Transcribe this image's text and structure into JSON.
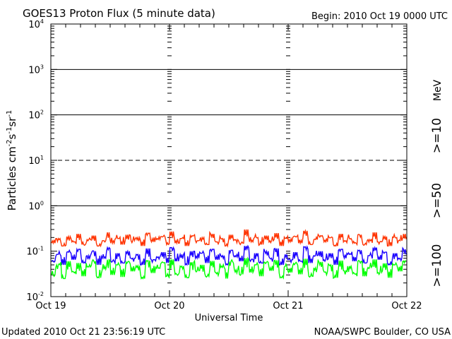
{
  "header": {
    "title": "GOES13 Proton Flux (5 minute data)",
    "begin": "Begin: 2010 Oct 19 0000 UTC"
  },
  "footer": {
    "updated": "Updated 2010 Oct 21 23:56:19 UTC",
    "source": "NOAA/SWPC Boulder, CO USA"
  },
  "colors": {
    "ge10": "#ff3300",
    "ge50": "#1a00ff",
    "ge100": "#00ff00",
    "axis": "#000000"
  },
  "chart_data": {
    "type": "line",
    "title": "GOES13 Proton Flux (5 minute data)",
    "xlabel": "Universal Time",
    "ylabel_base": "Particles cm",
    "ylabel_sup1": "-2",
    "ylabel_mid1": "s",
    "ylabel_sup2": "-1",
    "ylabel_mid2": "sr",
    "ylabel_sup3": "-1",
    "y_scale": "log",
    "ylim": [
      0.01,
      10000
    ],
    "y_ticks": [
      {
        "base": "10",
        "exp": "-2",
        "value": 0.01
      },
      {
        "base": "10",
        "exp": "-1",
        "value": 0.1
      },
      {
        "base": "10",
        "exp": "0",
        "value": 1
      },
      {
        "base": "10",
        "exp": "1",
        "value": 10
      },
      {
        "base": "10",
        "exp": "2",
        "value": 100
      },
      {
        "base": "10",
        "exp": "3",
        "value": 1000
      },
      {
        "base": "10",
        "exp": "4",
        "value": 10000
      }
    ],
    "x_ticks": [
      "Oct 19",
      "Oct 20",
      "Oct 21",
      "Oct 22"
    ],
    "xlim": [
      "2010-10-19 00:00",
      "2010-10-22 00:00"
    ],
    "threshold_lines": [
      {
        "value": 1,
        "style": "solid"
      },
      {
        "value": 10,
        "style": "dashed"
      },
      {
        "value": 100,
        "style": "solid"
      },
      {
        "value": 1000,
        "style": "solid"
      }
    ],
    "unit_label": "MeV",
    "legend": [
      {
        "label": ">=10",
        "color": "#ff3300"
      },
      {
        "label": ">=50",
        "color": "#1a00ff"
      },
      {
        "label": ">=100",
        "color": "#00ff00"
      }
    ],
    "series": [
      {
        "name": ">=10",
        "color": "#ff3300",
        "values": [
          0.15,
          0.19,
          0.13,
          0.21,
          0.16,
          0.24,
          0.14,
          0.18,
          0.22,
          0.13,
          0.17,
          0.26,
          0.15,
          0.19,
          0.14,
          0.23,
          0.17,
          0.2,
          0.13,
          0.25,
          0.16,
          0.18,
          0.21,
          0.14,
          0.27,
          0.15,
          0.19,
          0.13,
          0.22,
          0.17,
          0.2,
          0.14,
          0.24,
          0.16,
          0.19,
          0.13,
          0.23,
          0.18,
          0.15,
          0.3,
          0.16,
          0.2,
          0.14,
          0.22,
          0.17,
          0.25,
          0.13,
          0.19,
          0.16,
          0.21,
          0.15,
          0.28,
          0.14,
          0.18,
          0.22,
          0.16,
          0.2,
          0.13,
          0.24,
          0.17,
          0.19,
          0.15,
          0.23,
          0.14,
          0.18,
          0.26,
          0.16,
          0.21,
          0.13,
          0.2,
          0.17,
          0.24
        ]
      },
      {
        "name": ">=50",
        "color": "#1a00ff",
        "values": [
          0.06,
          0.085,
          0.05,
          0.095,
          0.065,
          0.11,
          0.055,
          0.08,
          0.1,
          0.05,
          0.07,
          0.12,
          0.06,
          0.09,
          0.055,
          0.1,
          0.07,
          0.085,
          0.05,
          0.115,
          0.065,
          0.075,
          0.095,
          0.055,
          0.12,
          0.06,
          0.085,
          0.05,
          0.1,
          0.07,
          0.09,
          0.055,
          0.11,
          0.065,
          0.08,
          0.05,
          0.105,
          0.075,
          0.06,
          0.13,
          0.065,
          0.09,
          0.055,
          0.1,
          0.07,
          0.115,
          0.05,
          0.085,
          0.065,
          0.095,
          0.06,
          0.125,
          0.055,
          0.08,
          0.1,
          0.065,
          0.09,
          0.05,
          0.11,
          0.07,
          0.085,
          0.06,
          0.105,
          0.055,
          0.08,
          0.12,
          0.065,
          0.095,
          0.05,
          0.09,
          0.07,
          0.11
        ]
      },
      {
        "name": ">=100",
        "color": "#00ff00",
        "values": [
          0.03,
          0.05,
          0.025,
          0.06,
          0.035,
          0.055,
          0.028,
          0.045,
          0.06,
          0.026,
          0.04,
          0.065,
          0.03,
          0.05,
          0.027,
          0.058,
          0.036,
          0.048,
          0.025,
          0.062,
          0.033,
          0.042,
          0.056,
          0.028,
          0.066,
          0.031,
          0.047,
          0.026,
          0.057,
          0.037,
          0.05,
          0.028,
          0.061,
          0.034,
          0.044,
          0.025,
          0.059,
          0.039,
          0.031,
          0.07,
          0.034,
          0.05,
          0.028,
          0.057,
          0.037,
          0.063,
          0.026,
          0.046,
          0.034,
          0.054,
          0.031,
          0.068,
          0.028,
          0.043,
          0.058,
          0.035,
          0.05,
          0.026,
          0.062,
          0.037,
          0.047,
          0.032,
          0.06,
          0.028,
          0.044,
          0.066,
          0.034,
          0.054,
          0.026,
          0.05,
          0.036,
          0.061
        ]
      }
    ]
  }
}
